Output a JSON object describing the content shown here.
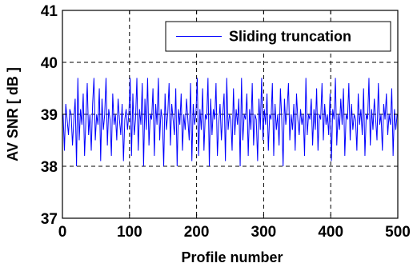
{
  "chart_data": {
    "type": "line",
    "title": "",
    "xlabel": "Profile number",
    "ylabel": "AV SNR [ dB ]",
    "xlim": [
      0,
      500
    ],
    "ylim": [
      37,
      41
    ],
    "x_ticks": [
      0,
      100,
      200,
      300,
      400,
      500
    ],
    "y_ticks": [
      37,
      38,
      39,
      40,
      41
    ],
    "x_tick_labels": [
      "0",
      "100",
      "200",
      "300",
      "400",
      "500"
    ],
    "y_tick_labels": [
      "37",
      "38",
      "39",
      "40",
      "41"
    ],
    "grid": true,
    "legend_position": "top-right",
    "series": [
      {
        "name": "Sliding truncation",
        "color": "#0000ff",
        "x_start": 1,
        "x_step": 2,
        "values": [
          39.0,
          38.3,
          39.2,
          38.9,
          38.6,
          39.1,
          39.0,
          38.4,
          38.9,
          39.3,
          38.0,
          39.7,
          38.5,
          39.1,
          38.8,
          39.4,
          38.2,
          38.9,
          39.6,
          38.6,
          39.0,
          38.3,
          39.2,
          39.7,
          38.5,
          39.0,
          38.8,
          39.5,
          38.1,
          39.3,
          38.7,
          39.0,
          39.7,
          38.4,
          39.1,
          38.9,
          38.2,
          39.4,
          38.8,
          39.0,
          38.5,
          39.3,
          38.9,
          38.6,
          39.2,
          38.1,
          38.9,
          39.1,
          38.7,
          39.0,
          39.7,
          38.2,
          39.4,
          38.6,
          38.9,
          39.7,
          38.3,
          39.1,
          38.8,
          39.6,
          38.0,
          39.3,
          38.7,
          39.7,
          38.4,
          39.0,
          38.9,
          39.5,
          38.2,
          39.2,
          38.8,
          39.7,
          38.5,
          39.1,
          38.9,
          38.0,
          39.4,
          38.7,
          39.0,
          39.6,
          38.4,
          39.2,
          38.9,
          38.6,
          39.5,
          38.0,
          39.1,
          38.8,
          39.4,
          38.3,
          39.0,
          38.7,
          39.3,
          38.9,
          38.5,
          39.6,
          38.1,
          39.2,
          38.8,
          39.0,
          39.7,
          38.2,
          39.1,
          38.7,
          39.5,
          38.3,
          39.0,
          38.9,
          39.7,
          38.0,
          39.3,
          38.6,
          39.1,
          38.9,
          39.6,
          38.2,
          38.8,
          39.2,
          38.5,
          39.0,
          39.4,
          38.1,
          39.7,
          38.7,
          39.0,
          38.9,
          38.3,
          39.5,
          38.6,
          39.1,
          38.8,
          39.3,
          38.0,
          39.7,
          38.5,
          39.0,
          38.9,
          39.4,
          38.2,
          39.1,
          38.7,
          39.6,
          38.4,
          39.0,
          38.9,
          38.1,
          39.3,
          38.7,
          39.7,
          38.5,
          39.1,
          38.8,
          39.4,
          38.3,
          39.0,
          38.9,
          39.6,
          38.2,
          39.2,
          38.7,
          39.0,
          38.4,
          39.5,
          38.9,
          38.0,
          39.3,
          38.8,
          39.1,
          39.6,
          38.5,
          39.0,
          38.7,
          39.2,
          38.3,
          39.4,
          38.9,
          38.6,
          39.1,
          38.8,
          39.0,
          38.2,
          39.7,
          38.6,
          39.0,
          38.9,
          39.3,
          38.4,
          39.1,
          38.7,
          39.5,
          38.3,
          39.0,
          38.9,
          39.6,
          38.5,
          39.2,
          38.8,
          39.0,
          38.6,
          39.4,
          38.1,
          39.1,
          38.9,
          39.7,
          38.4,
          39.0,
          38.7,
          39.3,
          38.8,
          39.5,
          38.2,
          39.0,
          38.9,
          39.6,
          38.5,
          39.2,
          38.7,
          39.0,
          38.9,
          38.3,
          39.4,
          38.8,
          39.1,
          38.6,
          39.5,
          38.2,
          39.0,
          38.9,
          39.7,
          38.4,
          39.1,
          38.7,
          39.3,
          38.9,
          38.5,
          39.6,
          38.8,
          39.0,
          38.3,
          39.2,
          38.9,
          39.4,
          38.6,
          39.0,
          38.8,
          39.5,
          38.2,
          39.1,
          38.7,
          39.0
        ]
      }
    ]
  }
}
